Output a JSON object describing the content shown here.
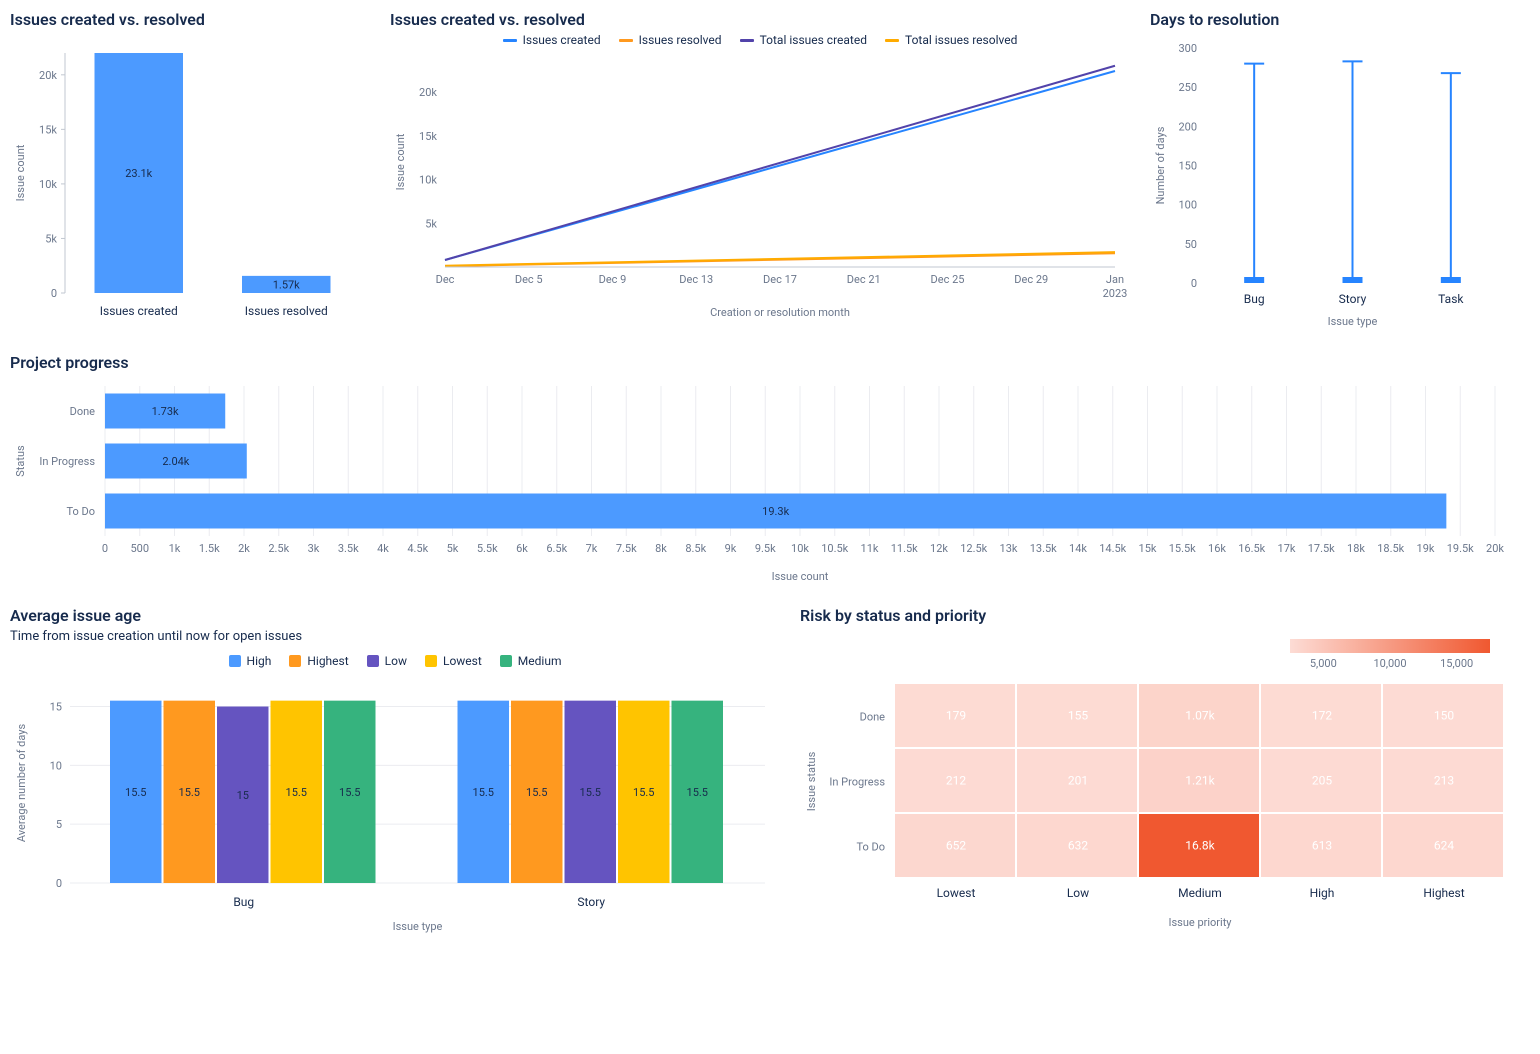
{
  "bar_created_resolved": {
    "title": "Issues created vs. resolved",
    "type": "bar",
    "ylabel": "Issue count",
    "categories": [
      "Issues created",
      "Issues resolved"
    ],
    "values": [
      23100,
      1570
    ],
    "value_labels": [
      "23.1k",
      "1.57k"
    ],
    "color": "#4c9aff",
    "ylim": [
      0,
      22000
    ],
    "yticks": [
      0,
      5000,
      10000,
      15000,
      20000
    ],
    "ytick_labels": [
      "0",
      "5k",
      "10k",
      "15k",
      "20k"
    ]
  },
  "line_created_resolved": {
    "title": "Issues created vs. resolved",
    "type": "line",
    "ylabel": "Issue count",
    "xlabel": "Creation or resolution month",
    "legend": [
      {
        "label": "Issues created",
        "color": "#2684ff"
      },
      {
        "label": "Issues resolved",
        "color": "#ff991f"
      },
      {
        "label": "Total issues created",
        "color": "#5243aa"
      },
      {
        "label": "Total issues resolved",
        "color": "#ffab00"
      }
    ],
    "xticks": [
      "Dec",
      "Dec 5",
      "Dec 9",
      "Dec 13",
      "Dec 17",
      "Dec 21",
      "Dec 25",
      "Dec 29",
      "Jan 2023"
    ],
    "yticks": [
      0,
      5000,
      10000,
      15000,
      20000
    ],
    "ytick_labels": [
      "",
      "5k",
      "10k",
      "15k",
      "20k"
    ],
    "ylim": [
      0,
      24000
    ],
    "series": {
      "issues_created": {
        "start": 800,
        "end": 22400,
        "color": "#2684ff"
      },
      "issues_resolved": {
        "start": 100,
        "end": 1570,
        "color": "#ff991f"
      },
      "total_created": {
        "start": 800,
        "end": 23000,
        "color": "#5243aa"
      },
      "total_resolved": {
        "start": 150,
        "end": 1700,
        "color": "#ffab00"
      }
    }
  },
  "days_resolution": {
    "title": "Days to resolution",
    "type": "range",
    "ylabel": "Number of days",
    "xlabel": "Issue type",
    "categories": [
      "Bug",
      "Story",
      "Task"
    ],
    "ranges": [
      [
        0,
        280
      ],
      [
        0,
        283
      ],
      [
        0,
        268
      ]
    ],
    "yticks": [
      0,
      50,
      100,
      150,
      200,
      250,
      300
    ],
    "ylim": [
      0,
      300
    ],
    "color": "#2684ff"
  },
  "project_progress": {
    "title": "Project progress",
    "type": "hbar",
    "ylabel": "Status",
    "xlabel": "Issue count",
    "categories": [
      "Done",
      "In Progress",
      "To Do"
    ],
    "values": [
      1730,
      2040,
      19300
    ],
    "value_labels": [
      "1.73k",
      "2.04k",
      "19.3k"
    ],
    "color": "#4c9aff",
    "xticks": [
      0,
      500,
      1000,
      1500,
      2000,
      2500,
      3000,
      3500,
      4000,
      4500,
      5000,
      5500,
      6000,
      6500,
      7000,
      7500,
      8000,
      8500,
      9000,
      9500,
      10000,
      10500,
      11000,
      11500,
      12000,
      12500,
      13000,
      13500,
      14000,
      14500,
      15000,
      15500,
      16000,
      16500,
      17000,
      17500,
      18000,
      18500,
      19000,
      19500,
      20000
    ],
    "xtick_labels": [
      "0",
      "500",
      "1k",
      "1.5k",
      "2k",
      "2.5k",
      "3k",
      "3.5k",
      "4k",
      "4.5k",
      "5k",
      "5.5k",
      "6k",
      "6.5k",
      "7k",
      "7.5k",
      "8k",
      "8.5k",
      "9k",
      "9.5k",
      "10k",
      "10.5k",
      "11k",
      "11.5k",
      "12k",
      "12.5k",
      "13k",
      "13.5k",
      "14k",
      "14.5k",
      "15k",
      "15.5k",
      "16k",
      "16.5k",
      "17k",
      "17.5k",
      "18k",
      "18.5k",
      "19k",
      "19.5k",
      "20k"
    ],
    "xlim": [
      0,
      20000
    ]
  },
  "avg_issue_age": {
    "title": "Average issue age",
    "subtitle": "Time from issue creation until now for open issues",
    "type": "grouped-bar",
    "ylabel": "Average number of days",
    "xlabel": "Issue type",
    "categories": [
      "Bug",
      "Story"
    ],
    "legend": [
      {
        "label": "High",
        "color": "#4c9aff"
      },
      {
        "label": "Highest",
        "color": "#ff991f"
      },
      {
        "label": "Low",
        "color": "#6554c0"
      },
      {
        "label": "Lowest",
        "color": "#ffc400"
      },
      {
        "label": "Medium",
        "color": "#36b37e"
      }
    ],
    "groups": [
      {
        "High": 15.5,
        "Highest": 15.5,
        "Low": 15,
        "Lowest": 15.5,
        "Medium": 15.5
      },
      {
        "High": 15.5,
        "Highest": 15.5,
        "Low": 15.5,
        "Lowest": 15.5,
        "Medium": 15.5
      }
    ],
    "group_labels": [
      [
        "15.5",
        "15.5",
        "15",
        "15.5",
        "15.5"
      ],
      [
        "15.5",
        "15.5",
        "15.5",
        "15.5",
        "15.5"
      ]
    ],
    "yticks": [
      0,
      5,
      10,
      15
    ],
    "ylim": [
      0,
      17
    ]
  },
  "risk_heatmap": {
    "title": "Risk by status and priority",
    "type": "heatmap",
    "ylabel": "Issue status",
    "xlabel": "Issue priority",
    "rows": [
      "Done",
      "In Progress",
      "To Do"
    ],
    "cols": [
      "Lowest",
      "Low",
      "Medium",
      "High",
      "Highest"
    ],
    "values": [
      [
        179,
        155,
        1070,
        172,
        150
      ],
      [
        212,
        201,
        1210,
        205,
        213
      ],
      [
        652,
        632,
        16800,
        613,
        624
      ]
    ],
    "value_labels": [
      [
        "179",
        "155",
        "1.07k",
        "172",
        "150"
      ],
      [
        "212",
        "201",
        "1.21k",
        "205",
        "213"
      ],
      [
        "652",
        "632",
        "16.8k",
        "613",
        "624"
      ]
    ],
    "color_min": "#fddcd5",
    "color_max": "#f05830",
    "legend_ticks": [
      "5,000",
      "10,000",
      "15,000"
    ]
  }
}
